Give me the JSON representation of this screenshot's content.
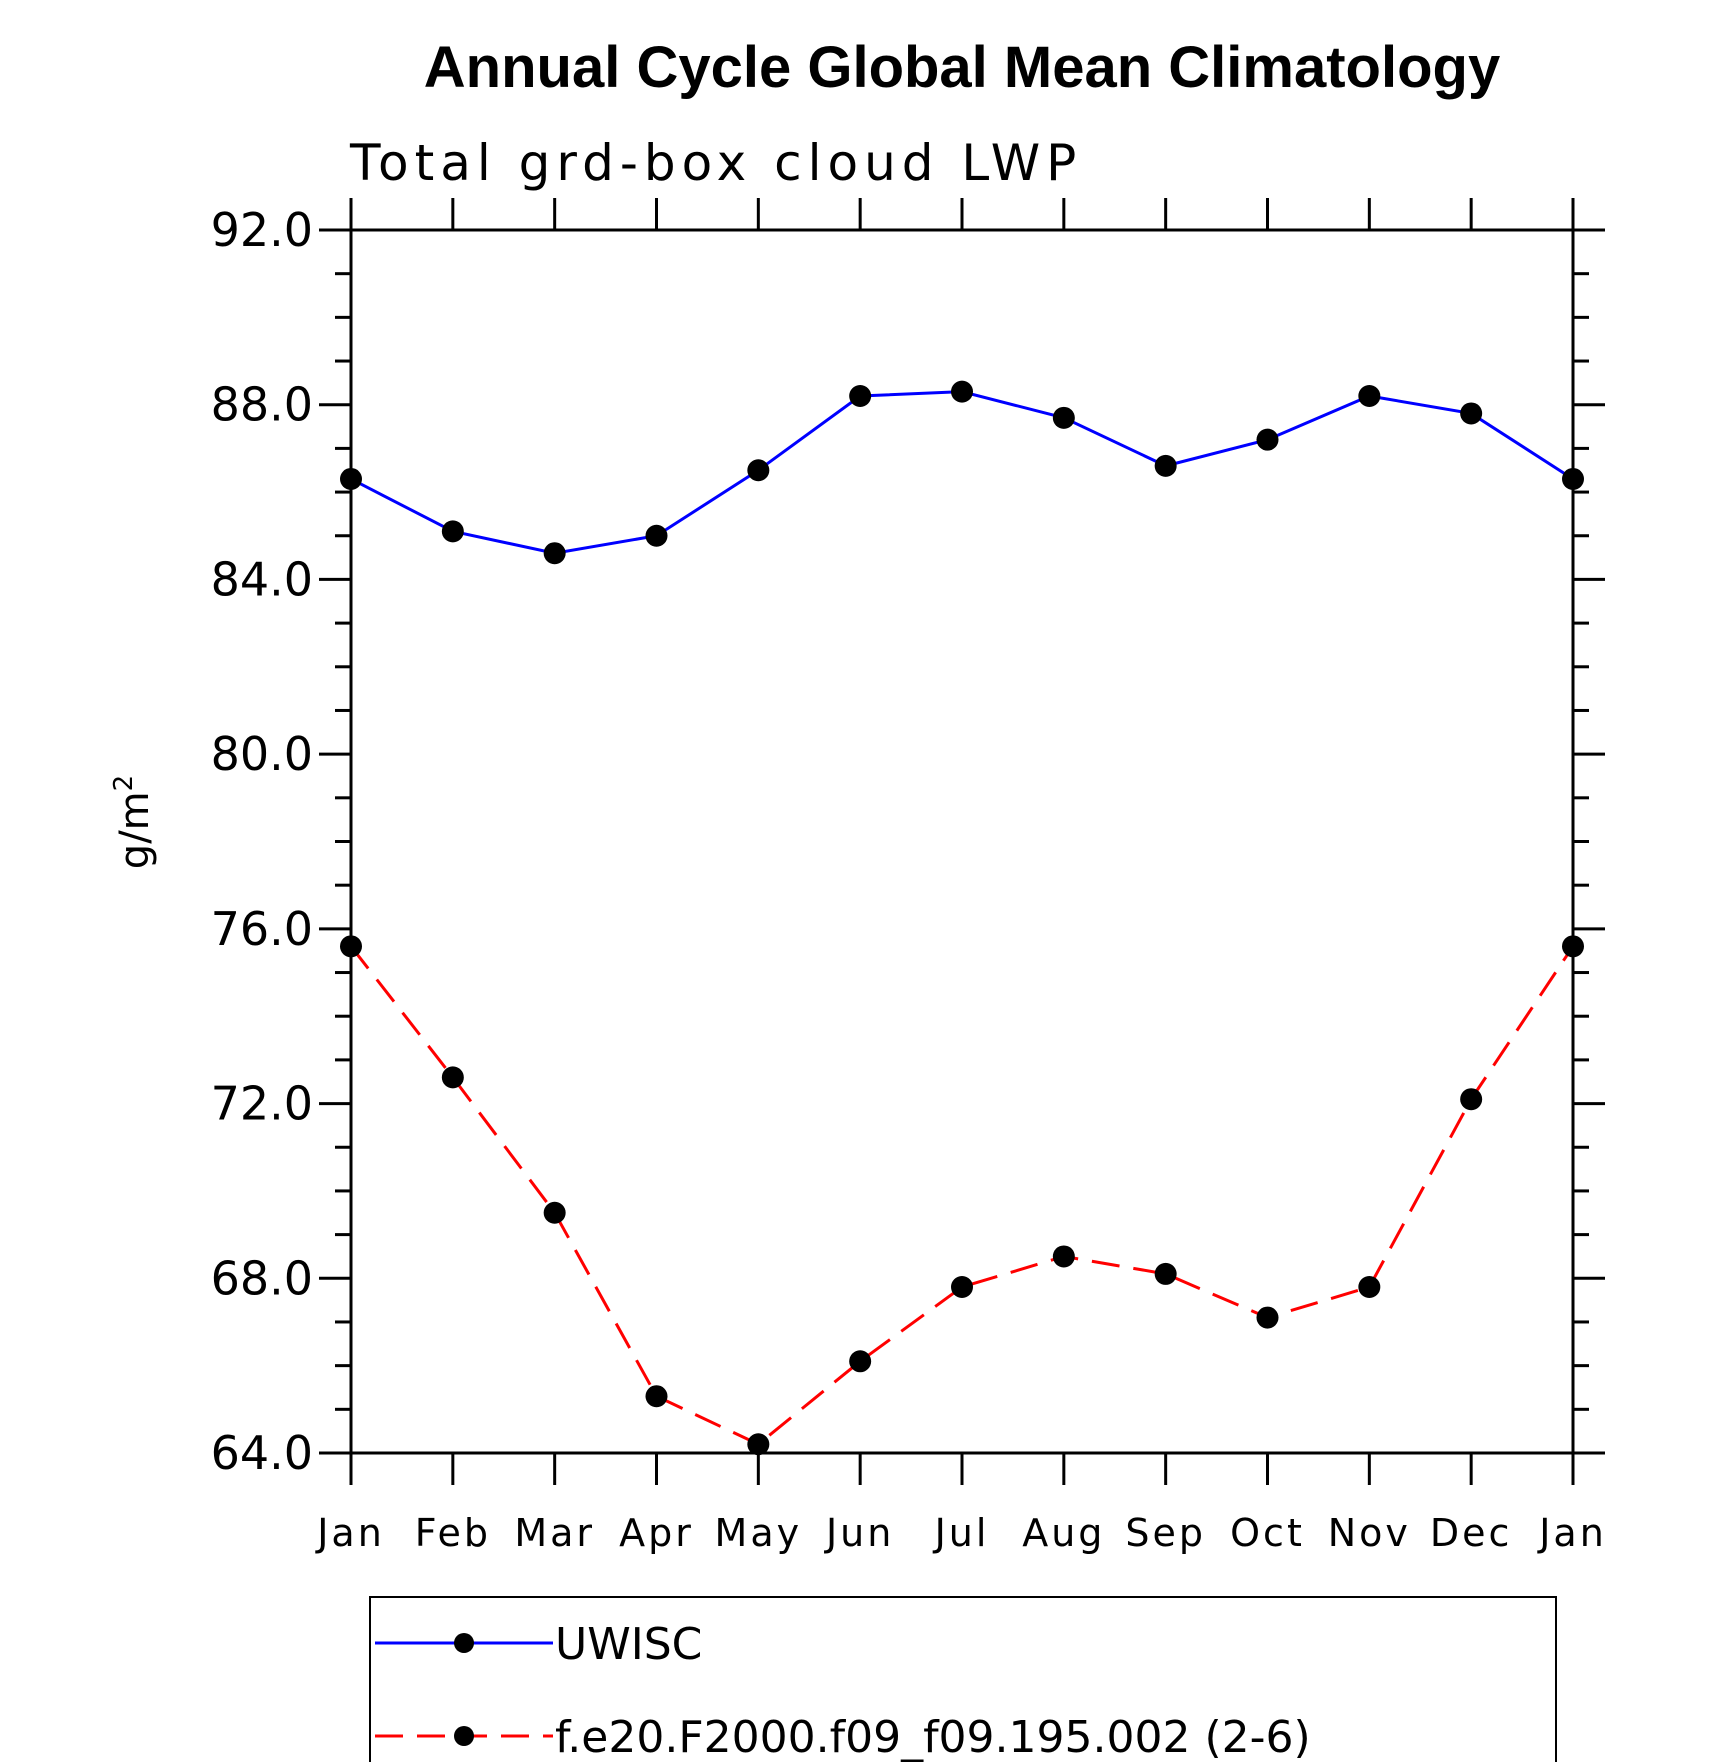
{
  "chart_data": {
    "type": "line",
    "title": "Annual Cycle Global Mean Climatology",
    "subtitle": "Total grd-box cloud LWP",
    "ylabel_base": "g/m",
    "ylabel_sup": "2",
    "categories": [
      "Jan",
      "Feb",
      "Mar",
      "Apr",
      "May",
      "Jun",
      "Jul",
      "Aug",
      "Sep",
      "Oct",
      "Nov",
      "Dec",
      "Jan"
    ],
    "ylim": [
      64.0,
      92.0
    ],
    "y_ticks": [
      "92.0",
      "88.0",
      "84.0",
      "80.0",
      "76.0",
      "72.0",
      "68.0",
      "64.0"
    ],
    "y_tick_values": [
      92,
      88,
      84,
      80,
      76,
      72,
      68,
      64
    ],
    "y_minor_step": 1,
    "grid": false,
    "legend_position": "bottom",
    "series": [
      {
        "name": "UWISC",
        "color": "#0000ff",
        "line_style": "solid",
        "marker": "filled-circle",
        "values": [
          86.3,
          85.1,
          84.6,
          85.0,
          86.5,
          88.2,
          88.3,
          87.7,
          86.6,
          87.2,
          88.2,
          87.8,
          86.3
        ]
      },
      {
        "name": "f.e20.F2000.f09_f09.195.002 (2-6)",
        "color": "#ff0000",
        "line_style": "dashed",
        "marker": "filled-circle",
        "values": [
          75.6,
          72.6,
          69.5,
          65.3,
          64.2,
          66.1,
          67.8,
          68.5,
          68.1,
          67.1,
          67.8,
          72.1,
          75.6
        ]
      }
    ]
  }
}
